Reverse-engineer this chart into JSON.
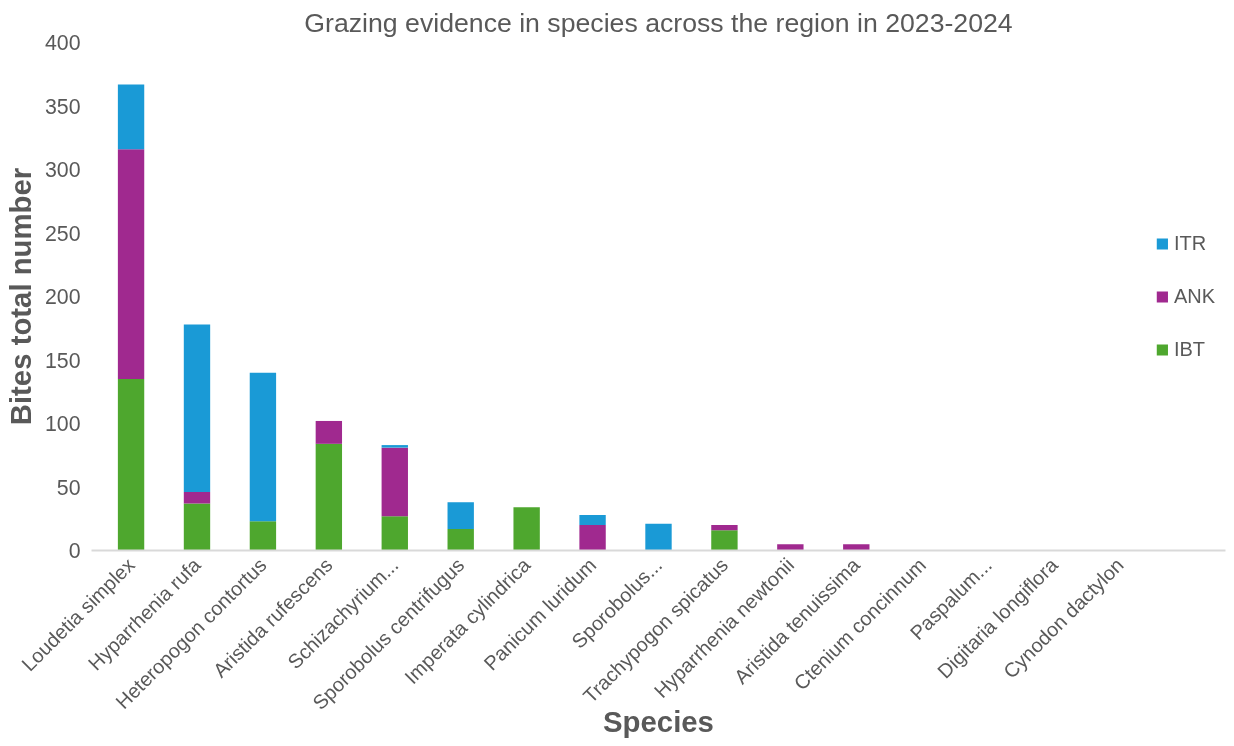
{
  "chart_data": {
    "type": "bar",
    "title": "Grazing evidence in species across the region in 2023-2024",
    "xlabel": "Species",
    "ylabel": "Bites total number",
    "categories": [
      "Loudetia simplex",
      "Hyparrhenia rufa",
      "Heteropogon contortus",
      "Aristida rufescens",
      "Schizachyrium...",
      "Sporobolus centrifugus",
      "Imperata cylindrica",
      "Panicum luridum",
      "Sporobolus...",
      "Trachypogon spicatus",
      "Hyparrhenia newtonii",
      "Aristida tenuissima",
      "Ctenium concinnum",
      "Paspalum...",
      "Digitaria longiflora",
      "Cynodon dactylon"
    ],
    "stacked": true,
    "series": [
      {
        "name": "IBT",
        "color": "#4ea72e",
        "values": [
          135,
          37,
          23,
          84,
          27,
          17,
          34,
          0,
          0,
          16,
          0,
          0,
          0,
          0,
          0,
          0
        ]
      },
      {
        "name": "ANK",
        "color": "#a0298f",
        "values": [
          181,
          9,
          0,
          18,
          54,
          0,
          0,
          20,
          0,
          4,
          5,
          5,
          0,
          0,
          0,
          0
        ]
      },
      {
        "name": "ITR",
        "color": "#1a9ad6",
        "values": [
          51,
          132,
          117,
          0,
          2,
          21,
          0,
          8,
          21,
          0,
          0,
          0,
          0,
          0,
          0,
          0
        ]
      }
    ],
    "ylim": [
      0,
      400
    ],
    "yticks": [
      0,
      50,
      100,
      150,
      200,
      250,
      300,
      350,
      400
    ],
    "grid": false,
    "legend": "right"
  }
}
